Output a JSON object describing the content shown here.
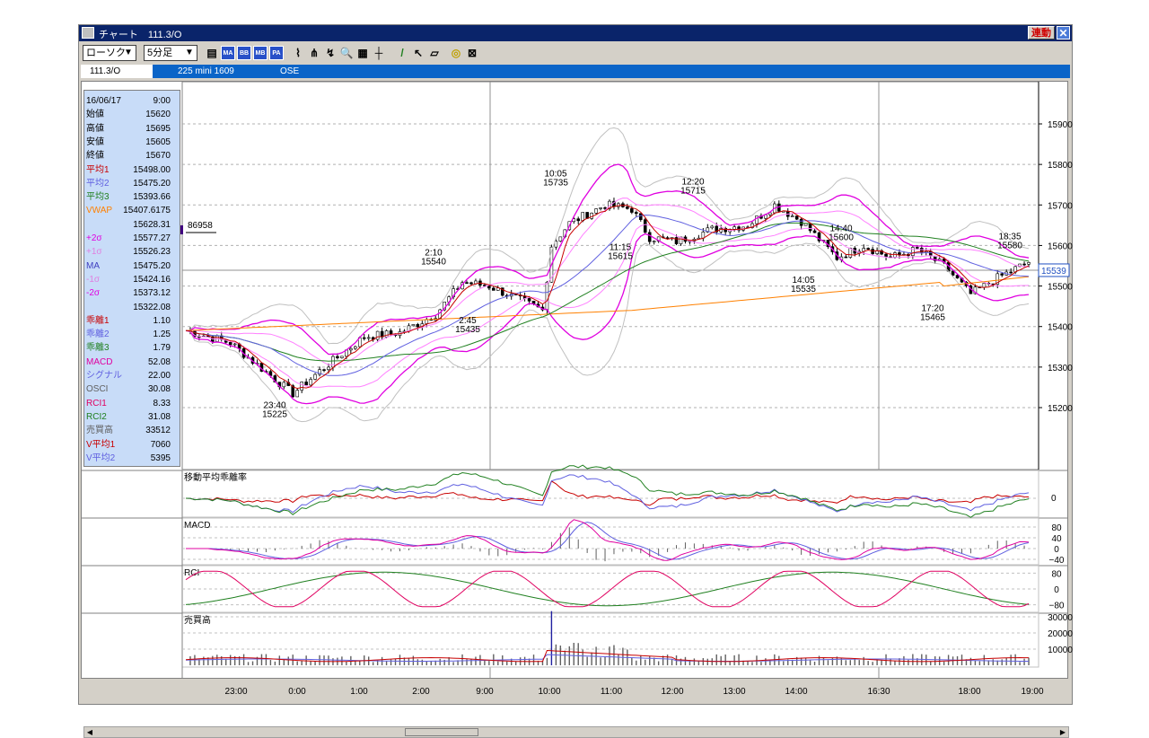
{
  "window": {
    "title": "チャート　111.3/O",
    "link_button": "連動",
    "close_glyph": "✕"
  },
  "toolbar": {
    "chart_type": "ローソク",
    "interval": "5分足",
    "buttons_text": [
      "MA",
      "BB",
      "MB",
      "PA"
    ]
  },
  "infobar": {
    "code": "111.3/O",
    "symbol": "225 mini 1609",
    "exchange": "OSE"
  },
  "datapanel": {
    "rows": [
      {
        "k": "16/06/17",
        "v": "9:00",
        "color": "#000000"
      },
      {
        "k": "始値",
        "v": "15620",
        "color": "#000000"
      },
      {
        "k": "高値",
        "v": "15695",
        "color": "#000000"
      },
      {
        "k": "安値",
        "v": "15605",
        "color": "#000000"
      },
      {
        "k": "終値",
        "v": "15670",
        "color": "#000000"
      },
      {
        "k": "平均1",
        "v": "15498.00",
        "color": "#c80000"
      },
      {
        "k": "平均2",
        "v": "15475.20",
        "color": "#6060e0"
      },
      {
        "k": "平均3",
        "v": "15393.66",
        "color": "#208020"
      },
      {
        "k": "VWAP",
        "v": "15407.6175",
        "color": "#ff8000"
      },
      {
        "k": "",
        "v": "15628.31",
        "color": "#000000"
      },
      {
        "k": "+2σ",
        "v": "15577.27",
        "color": "#e000e0"
      },
      {
        "k": "+1σ",
        "v": "15526.23",
        "color": "#e080e0"
      },
      {
        "k": "MA",
        "v": "15475.20",
        "color": "#4040c0"
      },
      {
        "k": "-1σ",
        "v": "15424.16",
        "color": "#e080e0"
      },
      {
        "k": "-2σ",
        "v": "15373.12",
        "color": "#e000e0"
      },
      {
        "k": "",
        "v": "15322.08",
        "color": "#000000"
      },
      {
        "k": "乖離1",
        "v": "1.10",
        "color": "#c80000"
      },
      {
        "k": "乖離2",
        "v": "1.25",
        "color": "#6060e0"
      },
      {
        "k": "乖離3",
        "v": "1.79",
        "color": "#208020"
      },
      {
        "k": "MACD",
        "v": "52.08",
        "color": "#e000a0"
      },
      {
        "k": "シグナル",
        "v": "22.00",
        "color": "#6060e0"
      },
      {
        "k": "OSCI",
        "v": "30.08",
        "color": "#606060"
      },
      {
        "k": "RCI1",
        "v": "8.33",
        "color": "#e00060"
      },
      {
        "k": "RCI2",
        "v": "31.08",
        "color": "#208020"
      },
      {
        "k": "売買高",
        "v": "33512",
        "color": "#606060"
      },
      {
        "k": "V平均1",
        "v": "7060",
        "color": "#c80000"
      },
      {
        "k": "V平均2",
        "v": "5395",
        "color": "#6060e0"
      }
    ]
  },
  "main_chart": {
    "price_ticks": [
      "15900",
      "15800",
      "15700",
      "15600",
      "15500",
      "15400",
      "15300",
      "15200"
    ],
    "current_price": "15539",
    "volume_marker": "86958",
    "annotations": [
      {
        "time": "23:40",
        "price": "15225"
      },
      {
        "time": "2:10",
        "price": "15540"
      },
      {
        "time": "2:45",
        "price": "15435"
      },
      {
        "time": "10:05",
        "price": "15735"
      },
      {
        "time": "11:15",
        "price": "15615"
      },
      {
        "time": "12:20",
        "price": "15715"
      },
      {
        "time": "14:05",
        "price": "15535"
      },
      {
        "time": "14:40",
        "price": "15600"
      },
      {
        "time": "17:20",
        "price": "15465"
      },
      {
        "time": "18:35",
        "price": "15580"
      }
    ]
  },
  "subcharts": {
    "kairi": {
      "title": "移動平均乖離率",
      "ticks": [
        "0"
      ]
    },
    "macd": {
      "title": "MACD",
      "ticks": [
        "80",
        "40",
        "0",
        "−40"
      ]
    },
    "rci": {
      "title": "RCI",
      "ticks": [
        "80",
        "0",
        "−80"
      ]
    },
    "volume": {
      "title": "売買高",
      "ticks": [
        "30000",
        "20000",
        "10000"
      ]
    }
  },
  "time_axis": [
    "23:00",
    "0:00",
    "1:00",
    "2:00",
    "9:00",
    "10:00",
    "11:00",
    "12:00",
    "13:00",
    "14:00",
    "16:30",
    "18:00",
    "19:00"
  ],
  "colors": {
    "title_bar": "#0a246a",
    "info_bar": "#0a64c8",
    "panel": "#c8dcf8",
    "candle_up": "#ffffff",
    "candle_down": "#000000",
    "ma1": "#c80000",
    "ma2": "#6060e0",
    "ma3": "#208020",
    "vwap": "#ff8000",
    "bb2": "#e000e0",
    "bb1": "#ff80ff",
    "bb3": "#c0c0c0"
  }
}
